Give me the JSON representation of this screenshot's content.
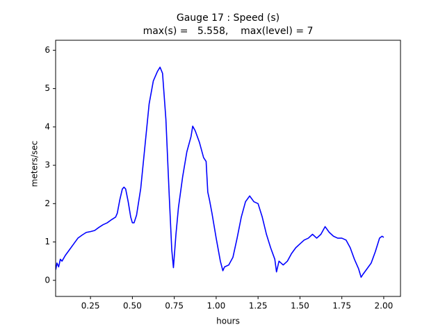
{
  "chart_data": {
    "type": "line",
    "title": "Gauge 17 : Speed (s)",
    "subtitle": "max(s) =   5.558,    max(level) = 7",
    "xlabel": "hours",
    "ylabel": "meters/sec",
    "xlim": [
      0.042,
      2.1
    ],
    "ylim": [
      -0.42,
      6.26
    ],
    "xticks": [
      0.25,
      {
        "value": 0.5,
        "label": "0.50"
      },
      0.75,
      {
        "value": 1.0,
        "label": "1.00"
      },
      1.25,
      {
        "value": 1.5,
        "label": "1.50"
      },
      1.75,
      {
        "value": 2.0,
        "label": "2.00"
      }
    ],
    "yticks": [
      0,
      1,
      2,
      3,
      4,
      5,
      6
    ],
    "x": [
      0.043,
      0.05,
      0.06,
      0.07,
      0.08,
      0.1,
      0.125,
      0.15,
      0.175,
      0.2,
      0.225,
      0.25,
      0.275,
      0.3,
      0.325,
      0.35,
      0.375,
      0.4,
      0.41,
      0.425,
      0.44,
      0.45,
      0.46,
      0.475,
      0.49,
      0.5,
      0.51,
      0.525,
      0.55,
      0.575,
      0.6,
      0.625,
      0.65,
      0.665,
      0.68,
      0.7,
      0.72,
      0.735,
      0.745,
      0.76,
      0.775,
      0.8,
      0.825,
      0.85,
      0.86,
      0.875,
      0.9,
      0.925,
      0.94,
      0.95,
      0.96,
      0.975,
      1.0,
      1.025,
      1.04,
      1.05,
      1.075,
      1.1,
      1.125,
      1.15,
      1.175,
      1.2,
      1.225,
      1.25,
      1.275,
      1.3,
      1.325,
      1.35,
      1.36,
      1.375,
      1.4,
      1.425,
      1.45,
      1.475,
      1.5,
      1.525,
      1.55,
      1.575,
      1.6,
      1.625,
      1.65,
      1.675,
      1.7,
      1.725,
      1.75,
      1.775,
      1.8,
      1.825,
      1.85,
      1.865,
      1.875,
      1.9,
      1.925,
      1.95,
      1.975,
      1.99,
      2.0
    ],
    "series": [
      {
        "name": "speed",
        "color": "#0000ff",
        "values": [
          0.28,
          0.45,
          0.35,
          0.55,
          0.5,
          0.65,
          0.8,
          0.95,
          1.1,
          1.18,
          1.25,
          1.27,
          1.3,
          1.38,
          1.45,
          1.5,
          1.58,
          1.65,
          1.75,
          2.1,
          2.38,
          2.43,
          2.38,
          2.05,
          1.65,
          1.5,
          1.5,
          1.7,
          2.4,
          3.5,
          4.6,
          5.2,
          5.45,
          5.558,
          5.4,
          4.2,
          2.2,
          0.8,
          0.33,
          1.2,
          1.9,
          2.7,
          3.35,
          3.75,
          4.02,
          3.9,
          3.6,
          3.2,
          3.1,
          2.3,
          2.1,
          1.75,
          1.1,
          0.5,
          0.25,
          0.35,
          0.4,
          0.6,
          1.1,
          1.65,
          2.05,
          2.2,
          2.05,
          2.0,
          1.65,
          1.2,
          0.85,
          0.55,
          0.22,
          0.5,
          0.4,
          0.5,
          0.7,
          0.85,
          0.95,
          1.05,
          1.1,
          1.2,
          1.1,
          1.2,
          1.4,
          1.25,
          1.15,
          1.1,
          1.1,
          1.05,
          0.85,
          0.55,
          0.3,
          0.08,
          0.15,
          0.3,
          0.45,
          0.75,
          1.1,
          1.15,
          1.12
        ]
      }
    ]
  }
}
